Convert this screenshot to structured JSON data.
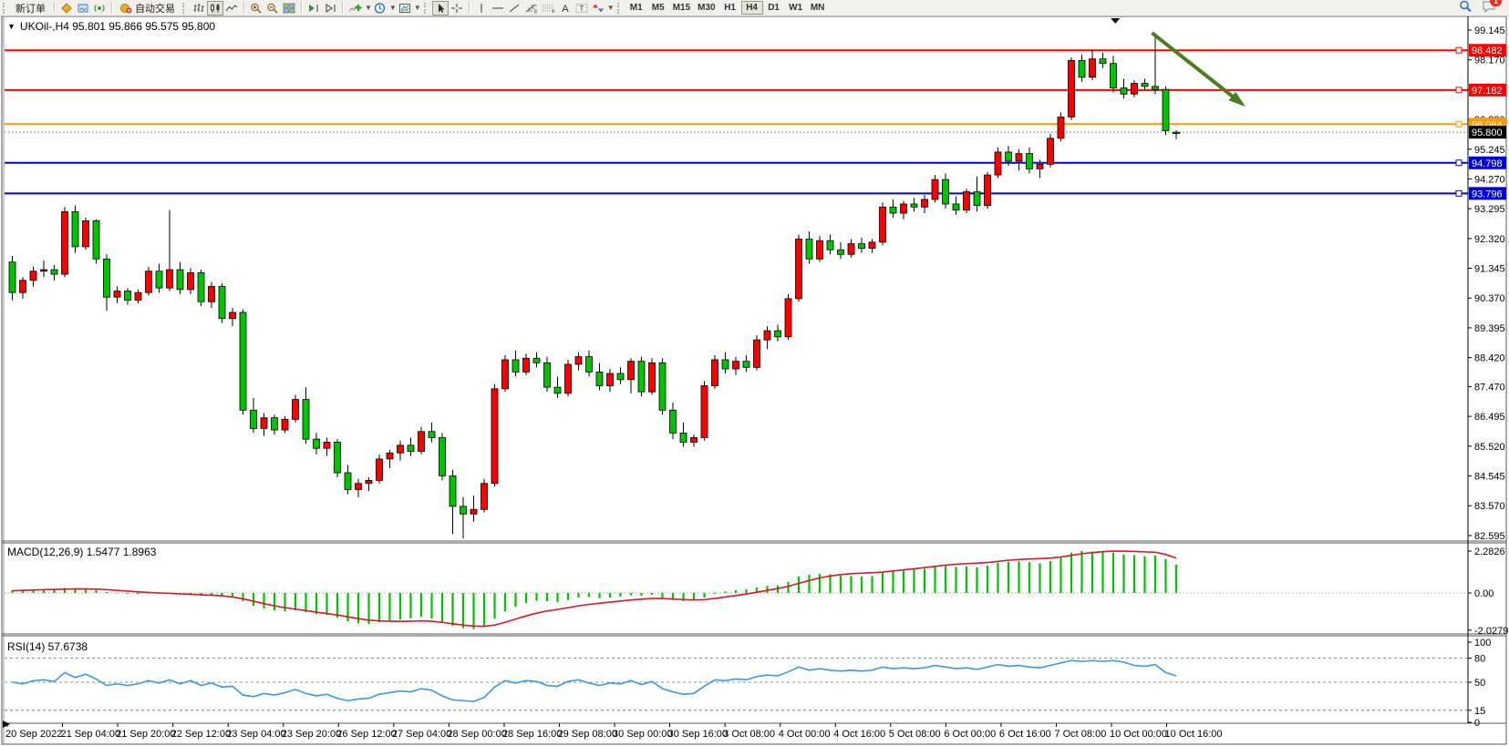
{
  "toolbar": {
    "new_order_label": "新订单",
    "autotrade_label": "自动交易",
    "timeframes": [
      "M1",
      "M5",
      "M15",
      "M30",
      "H1",
      "H4",
      "D1",
      "W1",
      "MN"
    ],
    "active_timeframe": "H4",
    "notification_count": "1"
  },
  "chart_data": {
    "type": "candlestick",
    "symbol": "UKOil-",
    "timeframe": "H4",
    "title_text": "UKOil-,H4  95.801 95.866 95.575 95.800",
    "ohlc_display": {
      "open": "95.801",
      "high": "95.866",
      "low": "95.575",
      "close": "95.800"
    },
    "price_axis_ticks": [
      99.145,
      98.17,
      97.195,
      96.22,
      95.245,
      94.27,
      93.295,
      92.32,
      91.345,
      90.37,
      89.395,
      88.42,
      87.47,
      86.495,
      85.52,
      84.545,
      83.57,
      82.595
    ],
    "hlines": [
      {
        "price": 98.482,
        "label": "98.482",
        "color": "#ff0000"
      },
      {
        "price": 97.182,
        "label": "97.182",
        "color": "#ff0000"
      },
      {
        "price": 96.064,
        "label": "96.064",
        "color": "#ff9b00"
      },
      {
        "price": 94.798,
        "label": "94.798",
        "color": "#0000e6"
      },
      {
        "price": 93.796,
        "label": "93.796",
        "color": "#0000e6"
      }
    ],
    "current_price": {
      "value": 95.8,
      "label": "95.800"
    },
    "colors": {
      "bull": "#fe0000",
      "bear": "#00c400",
      "wick": "#000000",
      "macd_hist": "#00c400",
      "macd_signal": "#e81123",
      "rsi_line": "#3b97e8",
      "arrow": "#4c7d21",
      "level_dash": "#6e6e6e"
    },
    "candles": [
      [
        91.55,
        91.75,
        90.3,
        90.55
      ],
      [
        90.55,
        91.05,
        90.35,
        90.95
      ],
      [
        90.95,
        91.4,
        90.75,
        91.25
      ],
      [
        91.25,
        91.6,
        91.05,
        91.3
      ],
      [
        91.3,
        91.45,
        90.95,
        91.15
      ],
      [
        91.15,
        93.35,
        91.05,
        93.2
      ],
      [
        93.2,
        93.4,
        91.85,
        92.05
      ],
      [
        92.05,
        93.0,
        91.95,
        92.9
      ],
      [
        92.9,
        92.95,
        91.5,
        91.65
      ],
      [
        91.65,
        91.8,
        89.95,
        90.4
      ],
      [
        90.4,
        90.75,
        90.2,
        90.6
      ],
      [
        90.6,
        90.7,
        90.15,
        90.3
      ],
      [
        90.3,
        90.65,
        90.2,
        90.55
      ],
      [
        90.55,
        91.4,
        90.45,
        91.25
      ],
      [
        91.25,
        91.5,
        90.55,
        90.7
      ],
      [
        90.7,
        93.25,
        90.6,
        91.3
      ],
      [
        91.3,
        91.55,
        90.5,
        90.65
      ],
      [
        90.65,
        91.35,
        90.5,
        91.2
      ],
      [
        91.2,
        91.3,
        90.1,
        90.25
      ],
      [
        90.25,
        90.9,
        90.05,
        90.75
      ],
      [
        90.75,
        90.85,
        89.55,
        89.7
      ],
      [
        89.7,
        90.05,
        89.45,
        89.9
      ],
      [
        89.9,
        90.0,
        86.55,
        86.7
      ],
      [
        86.7,
        87.1,
        85.95,
        86.1
      ],
      [
        86.1,
        86.6,
        85.85,
        86.45
      ],
      [
        86.45,
        86.55,
        85.9,
        86.05
      ],
      [
        86.05,
        86.5,
        85.95,
        86.4
      ],
      [
        86.4,
        87.2,
        86.3,
        87.05
      ],
      [
        87.05,
        87.45,
        85.6,
        85.75
      ],
      [
        85.75,
        85.95,
        85.25,
        85.45
      ],
      [
        85.45,
        85.8,
        85.2,
        85.65
      ],
      [
        85.65,
        85.75,
        84.5,
        84.65
      ],
      [
        84.65,
        84.9,
        83.95,
        84.1
      ],
      [
        84.1,
        84.45,
        83.85,
        84.3
      ],
      [
        84.3,
        84.5,
        84.05,
        84.4
      ],
      [
        84.4,
        85.25,
        84.3,
        85.1
      ],
      [
        85.1,
        85.4,
        84.8,
        85.3
      ],
      [
        85.3,
        85.7,
        85.05,
        85.55
      ],
      [
        85.55,
        85.8,
        85.2,
        85.35
      ],
      [
        85.35,
        86.15,
        85.25,
        86.0
      ],
      [
        86.0,
        86.3,
        85.65,
        85.8
      ],
      [
        85.8,
        85.95,
        84.4,
        84.55
      ],
      [
        84.55,
        84.75,
        82.65,
        83.55
      ],
      [
        83.55,
        83.85,
        82.5,
        83.3
      ],
      [
        83.3,
        83.9,
        83.05,
        83.45
      ],
      [
        83.45,
        84.45,
        83.35,
        84.3
      ],
      [
        84.3,
        87.55,
        84.2,
        87.4
      ],
      [
        87.4,
        88.5,
        87.3,
        88.35
      ],
      [
        88.35,
        88.65,
        87.8,
        87.95
      ],
      [
        87.95,
        88.55,
        87.85,
        88.4
      ],
      [
        88.4,
        88.6,
        88.1,
        88.25
      ],
      [
        88.25,
        88.45,
        87.3,
        87.45
      ],
      [
        87.45,
        87.8,
        87.1,
        87.25
      ],
      [
        87.25,
        88.35,
        87.15,
        88.2
      ],
      [
        88.2,
        88.6,
        88.0,
        88.45
      ],
      [
        88.45,
        88.65,
        87.8,
        87.95
      ],
      [
        87.95,
        88.25,
        87.35,
        87.5
      ],
      [
        87.5,
        88.05,
        87.3,
        87.9
      ],
      [
        87.9,
        88.1,
        87.55,
        87.7
      ],
      [
        87.7,
        88.4,
        87.25,
        88.3
      ],
      [
        88.3,
        88.45,
        87.15,
        87.3
      ],
      [
        87.3,
        88.4,
        87.2,
        88.25
      ],
      [
        88.25,
        88.4,
        86.55,
        86.7
      ],
      [
        86.7,
        86.95,
        85.75,
        85.95
      ],
      [
        85.95,
        86.3,
        85.5,
        85.65
      ],
      [
        85.65,
        85.9,
        85.5,
        85.8
      ],
      [
        85.8,
        87.65,
        85.7,
        87.5
      ],
      [
        87.5,
        88.5,
        87.4,
        88.35
      ],
      [
        88.35,
        88.6,
        87.9,
        88.05
      ],
      [
        88.05,
        88.45,
        87.85,
        88.3
      ],
      [
        88.3,
        88.5,
        87.95,
        88.1
      ],
      [
        88.1,
        89.15,
        88.0,
        89.0
      ],
      [
        89.0,
        89.45,
        88.7,
        89.3
      ],
      [
        89.3,
        89.5,
        88.95,
        89.1
      ],
      [
        89.1,
        90.5,
        89.0,
        90.35
      ],
      [
        90.35,
        92.45,
        90.25,
        92.3
      ],
      [
        92.3,
        92.55,
        91.5,
        91.65
      ],
      [
        91.65,
        92.4,
        91.55,
        92.25
      ],
      [
        92.25,
        92.45,
        91.8,
        91.95
      ],
      [
        91.95,
        92.2,
        91.65,
        91.8
      ],
      [
        91.8,
        92.3,
        91.7,
        92.15
      ],
      [
        92.15,
        92.35,
        91.85,
        92.0
      ],
      [
        92.0,
        92.3,
        91.85,
        92.2
      ],
      [
        92.2,
        93.5,
        92.1,
        93.35
      ],
      [
        93.35,
        93.6,
        93.0,
        93.15
      ],
      [
        93.15,
        93.55,
        92.95,
        93.45
      ],
      [
        93.45,
        93.65,
        93.2,
        93.35
      ],
      [
        93.35,
        93.75,
        93.15,
        93.6
      ],
      [
        93.6,
        94.4,
        93.5,
        94.25
      ],
      [
        94.25,
        94.45,
        93.3,
        93.45
      ],
      [
        93.45,
        93.7,
        93.1,
        93.25
      ],
      [
        93.25,
        93.95,
        93.15,
        93.85
      ],
      [
        93.85,
        94.35,
        93.2,
        93.4
      ],
      [
        93.4,
        94.5,
        93.3,
        94.4
      ],
      [
        94.4,
        95.3,
        94.3,
        95.15
      ],
      [
        95.15,
        95.35,
        94.7,
        94.85
      ],
      [
        94.85,
        95.25,
        94.55,
        95.1
      ],
      [
        95.1,
        95.3,
        94.45,
        94.6
      ],
      [
        94.6,
        94.9,
        94.3,
        94.75
      ],
      [
        94.75,
        95.75,
        94.65,
        95.6
      ],
      [
        95.6,
        96.45,
        95.5,
        96.3
      ],
      [
        96.3,
        98.25,
        96.2,
        98.15
      ],
      [
        98.15,
        98.35,
        97.45,
        97.6
      ],
      [
        97.6,
        98.5,
        97.5,
        98.2
      ],
      [
        98.2,
        98.4,
        97.9,
        98.05
      ],
      [
        98.05,
        98.3,
        97.1,
        97.25
      ],
      [
        97.25,
        97.55,
        96.9,
        97.05
      ],
      [
        97.05,
        97.5,
        96.95,
        97.4
      ],
      [
        97.4,
        97.55,
        97.15,
        97.3
      ],
      [
        97.3,
        99.0,
        97.05,
        97.2
      ],
      [
        97.2,
        97.3,
        95.7,
        95.85
      ],
      [
        95.801,
        95.866,
        95.575,
        95.8
      ]
    ],
    "time_labels": [
      "20 Sep 2022",
      "21 Sep 04:00",
      "21 Sep 20:00",
      "22 Sep 12:00",
      "23 Sep 04:00",
      "23 Sep 20:00",
      "26 Sep 12:00",
      "27 Sep 04:00",
      "28 Sep 00:00",
      "28 Sep 16:00",
      "29 Sep 08:00",
      "30 Sep 00:00",
      "30 Sep 16:00",
      "3 Oct 08:00",
      "4 Oct 00:00",
      "4 Oct 16:00",
      "5 Oct 08:00",
      "6 Oct 00:00",
      "6 Oct 16:00",
      "7 Oct 08:00",
      "10 Oct 00:00",
      "10 Oct 16:00"
    ],
    "macd": {
      "label": "MACD(12,26,9) 1.5477 1.8963",
      "params": "12,26,9",
      "main_value": "1.5477",
      "signal_value": "1.8963",
      "axis_ticks": [
        {
          "label": "2.2826",
          "value": 2.2826
        },
        {
          "label": "0.00",
          "value": 0
        },
        {
          "label": "-2.0279",
          "value": -2.0279
        }
      ],
      "histogram": [
        0.15,
        0.18,
        0.2,
        0.22,
        0.2,
        0.28,
        0.25,
        0.22,
        0.15,
        0.05,
        -0.02,
        -0.05,
        -0.06,
        -0.02,
        -0.05,
        -0.02,
        -0.08,
        -0.06,
        -0.12,
        -0.1,
        -0.18,
        -0.22,
        -0.45,
        -0.7,
        -0.85,
        -0.95,
        -1.0,
        -0.95,
        -1.05,
        -1.15,
        -1.2,
        -1.35,
        -1.55,
        -1.65,
        -1.7,
        -1.6,
        -1.5,
        -1.45,
        -1.38,
        -1.3,
        -1.4,
        -1.6,
        -1.8,
        -1.92,
        -1.97,
        -1.85,
        -1.4,
        -1.0,
        -0.75,
        -0.55,
        -0.42,
        -0.45,
        -0.5,
        -0.38,
        -0.25,
        -0.22,
        -0.28,
        -0.25,
        -0.2,
        -0.12,
        -0.15,
        -0.1,
        -0.25,
        -0.38,
        -0.45,
        -0.42,
        -0.25,
        -0.05,
        0.08,
        0.15,
        0.2,
        0.3,
        0.38,
        0.42,
        0.6,
        0.9,
        1.0,
        1.05,
        1.02,
        0.95,
        0.92,
        0.9,
        0.92,
        1.1,
        1.2,
        1.25,
        1.28,
        1.32,
        1.45,
        1.48,
        1.42,
        1.45,
        1.4,
        1.5,
        1.65,
        1.7,
        1.72,
        1.68,
        1.62,
        1.75,
        1.95,
        2.2,
        2.28,
        2.25,
        2.28,
        2.2,
        2.1,
        2.05,
        2.0,
        2.05,
        1.85,
        1.55
      ],
      "signal": [
        0.12,
        0.14,
        0.16,
        0.18,
        0.19,
        0.21,
        0.22,
        0.22,
        0.21,
        0.18,
        0.14,
        0.1,
        0.06,
        0.03,
        0.0,
        -0.02,
        -0.05,
        -0.07,
        -0.1,
        -0.12,
        -0.16,
        -0.22,
        -0.32,
        -0.45,
        -0.58,
        -0.7,
        -0.8,
        -0.88,
        -0.96,
        -1.05,
        -1.12,
        -1.2,
        -1.3,
        -1.4,
        -1.48,
        -1.52,
        -1.54,
        -1.55,
        -1.54,
        -1.52,
        -1.54,
        -1.6,
        -1.68,
        -1.75,
        -1.8,
        -1.82,
        -1.75,
        -1.6,
        -1.42,
        -1.25,
        -1.1,
        -0.98,
        -0.9,
        -0.8,
        -0.7,
        -0.62,
        -0.56,
        -0.5,
        -0.44,
        -0.38,
        -0.34,
        -0.3,
        -0.3,
        -0.33,
        -0.36,
        -0.38,
        -0.36,
        -0.3,
        -0.22,
        -0.14,
        -0.06,
        0.04,
        0.14,
        0.24,
        0.36,
        0.52,
        0.68,
        0.82,
        0.92,
        1.0,
        1.05,
        1.08,
        1.1,
        1.14,
        1.2,
        1.26,
        1.32,
        1.38,
        1.45,
        1.52,
        1.56,
        1.6,
        1.62,
        1.66,
        1.72,
        1.78,
        1.82,
        1.85,
        1.87,
        1.9,
        1.96,
        2.05,
        2.14,
        2.2,
        2.25,
        2.28,
        2.28,
        2.26,
        2.24,
        2.22,
        2.1,
        1.9
      ]
    },
    "rsi": {
      "label": "RSI(14) 57.6738",
      "period": "14",
      "value": "57.6738",
      "axis_ticks": [
        {
          "label": "100",
          "value": 100
        },
        {
          "label": "80",
          "value": 80
        },
        {
          "label": "50",
          "value": 50
        },
        {
          "label": "15",
          "value": 15
        },
        {
          "label": "0",
          "value": 0
        }
      ],
      "levels": [
        80,
        50,
        15
      ],
      "values": [
        50,
        48,
        52,
        53,
        51,
        62,
        56,
        60,
        54,
        46,
        48,
        46,
        48,
        52,
        49,
        53,
        48,
        52,
        46,
        49,
        44,
        45,
        34,
        32,
        36,
        34,
        37,
        41,
        36,
        33,
        35,
        30,
        27,
        29,
        30,
        35,
        37,
        39,
        38,
        42,
        40,
        33,
        28,
        27,
        26,
        31,
        44,
        52,
        49,
        52,
        51,
        46,
        45,
        51,
        53,
        49,
        46,
        49,
        48,
        52,
        47,
        51,
        42,
        38,
        35,
        36,
        45,
        53,
        52,
        54,
        53,
        57,
        59,
        58,
        63,
        69,
        65,
        67,
        65,
        64,
        65,
        64,
        65,
        69,
        67,
        68,
        67,
        68,
        71,
        69,
        67,
        68,
        66,
        69,
        72,
        70,
        71,
        69,
        68,
        71,
        74,
        77,
        76,
        77,
        76,
        77,
        75,
        71,
        70,
        72,
        62,
        58
      ]
    },
    "annotations": {
      "arrow": {
        "from_bar": 109,
        "from_price": 99.05,
        "to_bar": 117.5,
        "to_price": 96.75
      },
      "shift_marker_bar": 105.5
    }
  }
}
